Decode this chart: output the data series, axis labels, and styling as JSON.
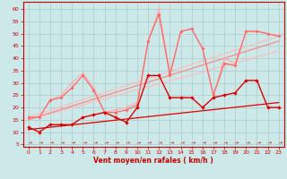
{
  "background_color": "#cde8e8",
  "grid_color": "#aacccc",
  "xlabel": "Vent moyen/en rafales ( km/h )",
  "xlim": [
    -0.5,
    23.5
  ],
  "ylim": [
    4,
    63
  ],
  "yticks": [
    5,
    10,
    15,
    20,
    25,
    30,
    35,
    40,
    45,
    50,
    55,
    60
  ],
  "xticks": [
    0,
    1,
    2,
    3,
    4,
    5,
    6,
    7,
    8,
    9,
    10,
    11,
    12,
    13,
    14,
    15,
    16,
    17,
    18,
    19,
    20,
    21,
    22,
    23
  ],
  "series": {
    "red_main": {
      "x": [
        0,
        1,
        2,
        3,
        4,
        5,
        6,
        7,
        8,
        9,
        10,
        11,
        12,
        13,
        14,
        15,
        16,
        17,
        18,
        19,
        20,
        21,
        22,
        23
      ],
      "y": [
        12,
        10,
        13,
        13,
        13,
        16,
        17,
        18,
        16,
        14,
        20,
        33,
        33,
        24,
        24,
        24,
        20,
        24,
        25,
        26,
        31,
        31,
        20,
        20
      ]
    },
    "red_linear": {
      "x": [
        0,
        23
      ],
      "y": [
        11,
        22
      ]
    },
    "med_pink_main": {
      "x": [
        0,
        1,
        2,
        3,
        4,
        5,
        6,
        7,
        8,
        9,
        10,
        11,
        12,
        13,
        14,
        15,
        16,
        17,
        18,
        19,
        20,
        21,
        22,
        23
      ],
      "y": [
        16,
        16,
        23,
        24,
        28,
        33,
        27,
        18,
        18,
        19,
        21,
        47,
        58,
        33,
        51,
        52,
        44,
        25,
        38,
        37,
        51,
        51,
        50,
        49
      ]
    },
    "med_pink_linear": {
      "x": [
        0,
        23
      ],
      "y": [
        15,
        47
      ]
    },
    "light_pink_main": {
      "x": [
        0,
        1,
        2,
        3,
        4,
        5,
        6,
        7,
        8,
        9,
        10,
        11,
        12,
        13,
        14,
        15,
        16,
        17,
        18,
        19,
        20,
        21,
        22,
        23
      ],
      "y": [
        16,
        16,
        23,
        25,
        30,
        34,
        28,
        18,
        19,
        20,
        22,
        47,
        60,
        34,
        51,
        52,
        44,
        25,
        40,
        38,
        51,
        51,
        50,
        49
      ]
    },
    "light_pink_linear1": {
      "x": [
        0,
        23
      ],
      "y": [
        15,
        43
      ]
    },
    "light_pink_linear2": {
      "x": [
        0,
        23
      ],
      "y": [
        16,
        49
      ]
    }
  },
  "wind_arrows_x": [
    0,
    1,
    2,
    3,
    4,
    5,
    6,
    7,
    8,
    9,
    10,
    11,
    12,
    13,
    14,
    15,
    16,
    17,
    18,
    19,
    20,
    21,
    22,
    23
  ],
  "wind_arrow_char": "↗"
}
